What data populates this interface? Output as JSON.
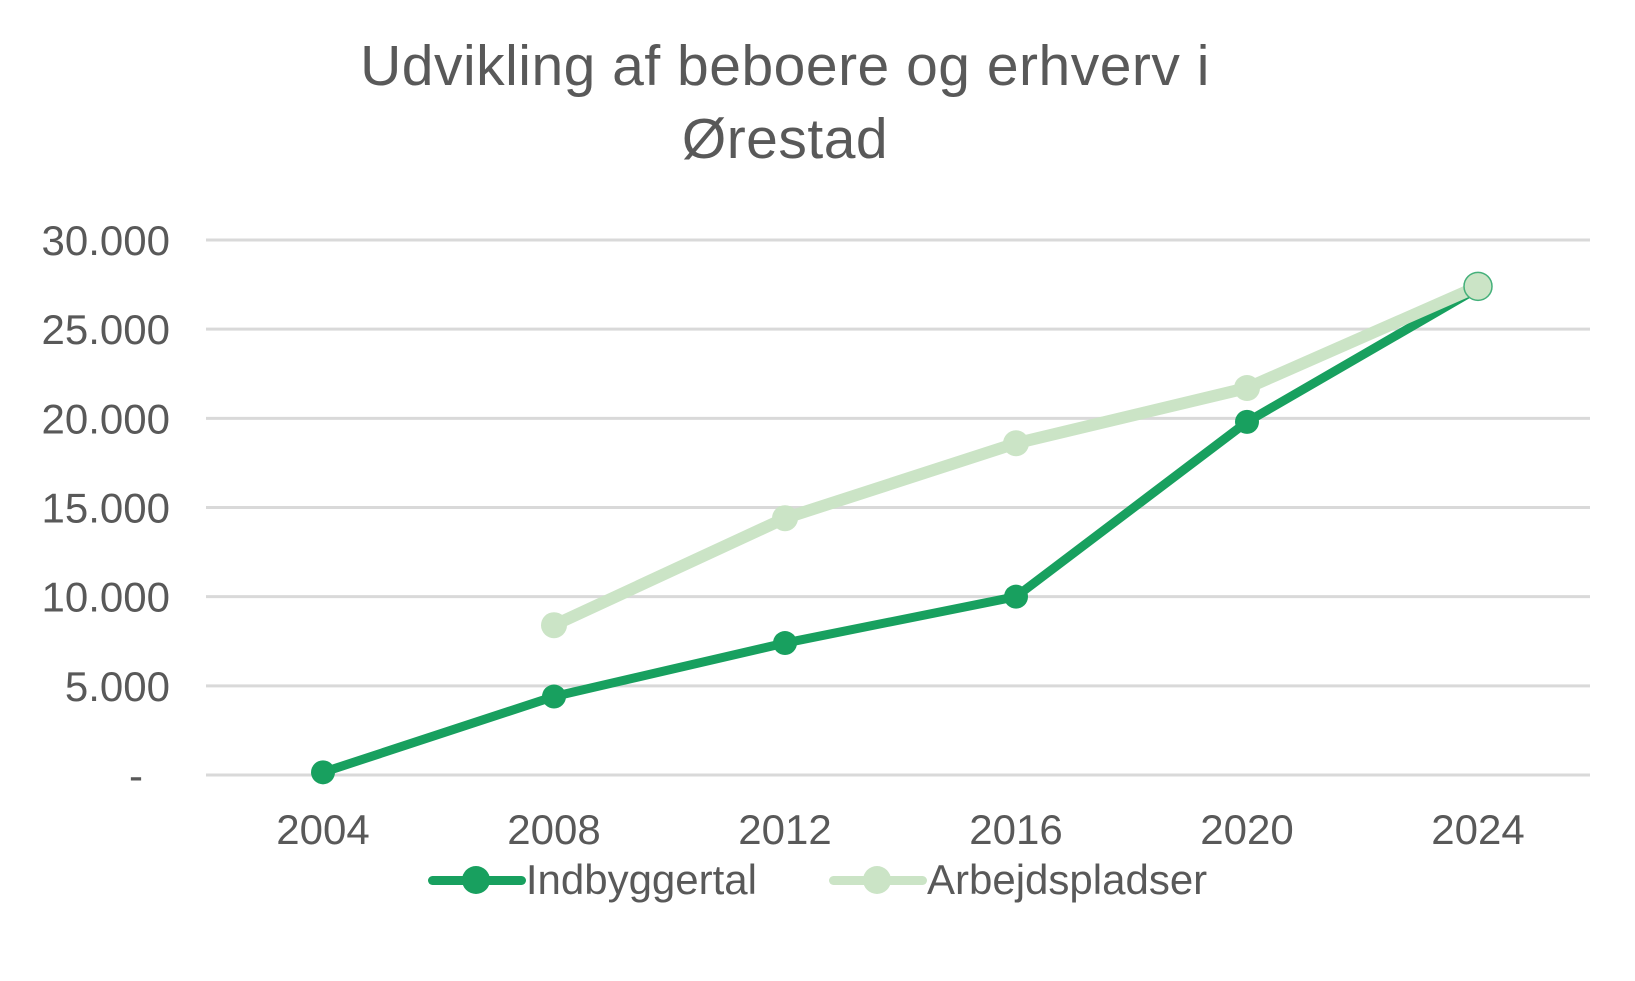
{
  "title": "Udvikling af beboere og erhverv i Ørestad",
  "colors": {
    "background": "#FFFFFF",
    "text": "#595959",
    "gridline": "#D9D9D9",
    "indbyggertal_green": "#18A05F",
    "arbejdspladser_light_green": "#CBE4C6"
  },
  "chart_data": {
    "type": "line",
    "title": "Udvikling af beboere og erhverv i Ørestad",
    "xlabel": "",
    "ylabel": "",
    "x_tick_labels": [
      "2004",
      "2008",
      "2012",
      "2016",
      "2020",
      "2024"
    ],
    "y_tick_labels": [
      "-",
      "5.000",
      "10.000",
      "15.000",
      "20.000",
      "25.000",
      "30.000"
    ],
    "y_ticks": [
      0,
      5000,
      10000,
      15000,
      20000,
      25000,
      30000
    ],
    "ylim": [
      0,
      30000
    ],
    "xlim": [
      2004,
      2024
    ],
    "grid": true,
    "legend_position": "bottom",
    "series": [
      {
        "name": "Indbyggertal",
        "color": "#18A05F",
        "x": [
          2004,
          2008,
          2012,
          2016,
          2020,
          2024
        ],
        "values": [
          150,
          4400,
          7400,
          10000,
          19800,
          27300
        ]
      },
      {
        "name": "Arbejdspladser",
        "color": "#CBE4C6",
        "x": [
          2008,
          2012,
          2016,
          2020,
          2024
        ],
        "values": [
          8400,
          14400,
          18600,
          21700,
          27400
        ]
      }
    ]
  },
  "legend": {
    "items": [
      {
        "label": "Indbyggertal"
      },
      {
        "label": "Arbejdspladser"
      }
    ]
  }
}
